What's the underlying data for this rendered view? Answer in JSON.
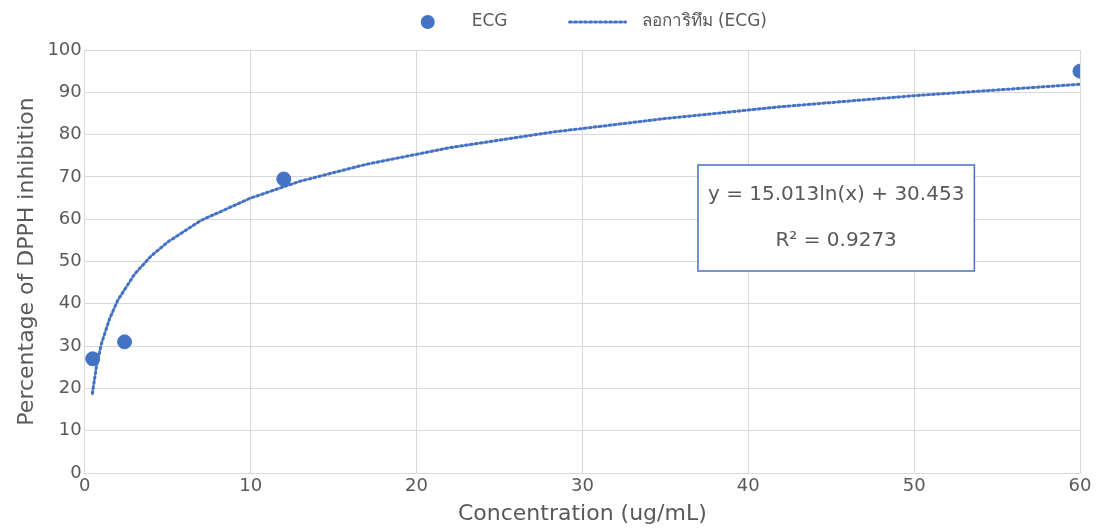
{
  "chart_data": {
    "type": "scatter",
    "xlabel": "Concentration (ug/mL)",
    "ylabel": "Percentage of DPPH inhibition",
    "series": [
      {
        "name": "ECG",
        "type": "scatter",
        "color": "#4472c4",
        "marker": "circle",
        "x": [
          0.48,
          2.4,
          12,
          60
        ],
        "values": [
          27,
          31,
          69.5,
          95
        ]
      },
      {
        "name": "ลอการิทึม (ECG)",
        "type": "line",
        "color": "#4472c4",
        "marker": "none",
        "line_style": "dotted",
        "x": [
          0.46,
          0.7,
          1,
          1.5,
          2,
          3,
          4,
          5,
          7,
          10,
          13,
          17,
          22,
          28,
          35,
          42,
          50,
          60
        ],
        "values": [
          18.8,
          25.1,
          30.5,
          36.5,
          40.9,
          47,
          51.3,
          54.6,
          59.7,
          65,
          69,
          73,
          76.9,
          80.5,
          83.8,
          86.6,
          89.2,
          91.9
        ]
      }
    ],
    "xlim": [
      0,
      60
    ],
    "xticks": [
      0,
      10,
      20,
      30,
      40,
      50,
      60
    ],
    "ylim": [
      0,
      100
    ],
    "yticks": [
      0,
      10,
      20,
      30,
      40,
      50,
      60,
      70,
      80,
      90,
      100
    ],
    "grid": true,
    "legend": "top",
    "annotations": [
      "y = 15.013ln(x) + 30.453",
      "R² = 0.9273"
    ]
  }
}
